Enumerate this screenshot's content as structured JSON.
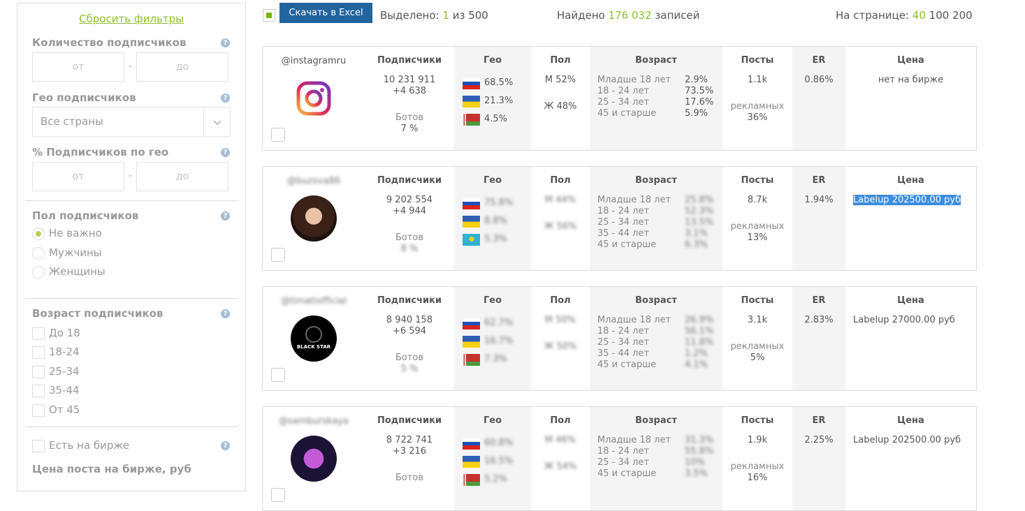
{
  "sidebar": {
    "reset": "Сбросить фильтры",
    "followers_title": "Количество подписчиков",
    "from_placeholder": "от",
    "to_placeholder": "до",
    "geo_title": "Гео подписчиков",
    "geo_select": "Все страны",
    "geo_pct_title": "% Подписчиков по гео",
    "gender_title": "Пол подписчиков",
    "gender_options": [
      "Не важно",
      "Мужчины",
      "Женщины"
    ],
    "age_title": "Возраст подписчиков",
    "age_options": [
      "До 18",
      "18-24",
      "25-34",
      "35-44",
      "От 45"
    ],
    "exchange_label": "Есть на бирже",
    "price_title": "Цена поста на бирже, руб",
    "help_symbol": "?"
  },
  "topbar": {
    "excel_button": "Скачать в Excel",
    "selected_label": "Выделено:",
    "selected_count": "1",
    "selected_of": "из 500",
    "found_label": "Найдено",
    "found_count": "176 032",
    "found_suffix": "записей",
    "per_page_label": "На странице:",
    "per_page_options": [
      "40",
      "100",
      "200"
    ]
  },
  "headers": {
    "subscribers": "Подписчики",
    "geo": "Гео",
    "gender": "Пол",
    "age": "Возраст",
    "posts": "Посты",
    "er": "ER",
    "price": "Цена",
    "bots": "Ботов",
    "ads": "рекламных"
  },
  "cards": [
    {
      "handle": "@instagramru",
      "followers": "10 231 911",
      "growth": "+4 638",
      "bots": "7 %",
      "geo": [
        "68.5%",
        "21.3%",
        "4.5%"
      ],
      "flags": [
        "ru",
        "ua",
        "by"
      ],
      "gender": [
        "М 52%",
        "Ж 48%"
      ],
      "age_labels": [
        "Младше 18 лет",
        "18 - 24 лет",
        "25 - 34 лет",
        "45 и старше"
      ],
      "age_values": [
        "2.9%",
        "73.5%",
        "17.6%",
        "5.9%"
      ],
      "posts": "1.1k",
      "ads": "36%",
      "er": "0.86%",
      "price": "нет на бирже"
    },
    {
      "handle": "@buzova86",
      "followers": "9 202 554",
      "growth": "+4 944",
      "bots": "8 %",
      "geo": [
        "75.8%",
        "8.8%",
        "5.3%"
      ],
      "flags": [
        "ru",
        "ua",
        "kz"
      ],
      "gender": [
        "М 44%",
        "Ж 56%"
      ],
      "age_labels": [
        "Младше 18 лет",
        "18 - 24 лет",
        "25 - 34 лет",
        "35 - 44 лет",
        "45 и старше"
      ],
      "age_values": [
        "25.8%",
        "52.3%",
        "13.5%",
        "3.1%",
        "6.3%"
      ],
      "posts": "8.7k",
      "ads": "13%",
      "er": "1.94%",
      "price": "Labelup 202500.00 руб"
    },
    {
      "handle": "@timatiofficial",
      "followers": "8 940 158",
      "growth": "+6 594",
      "bots": "5 %",
      "geo": [
        "62.7%",
        "16.7%",
        "7.3%"
      ],
      "flags": [
        "ru",
        "ua",
        "by"
      ],
      "gender": [
        "М 50%",
        "Ж 50%"
      ],
      "age_labels": [
        "Младше 18 лет",
        "18 - 24 лет",
        "25 - 34 лет",
        "35 - 44 лет",
        "45 и старше"
      ],
      "age_values": [
        "26.9%",
        "56.1%",
        "11.8%",
        "1.2%",
        "4.1%"
      ],
      "posts": "3.1k",
      "ads": "5%",
      "er": "2.83%",
      "price": "Labelup 27000.00 руб"
    },
    {
      "handle": "@samburskaya",
      "followers": "8 722 741",
      "growth": "+3 216",
      "bots": "",
      "geo": [
        "60.8%",
        "16.5%",
        "5.2%"
      ],
      "flags": [
        "ru",
        "ua",
        "by"
      ],
      "gender": [
        "М 46%",
        "Ж 54%"
      ],
      "age_labels": [
        "Младше 18 лет",
        "18 - 24 лет",
        "25 - 34 лет",
        "45 и старше"
      ],
      "age_values": [
        "31.3%",
        "55.8%",
        "10%",
        "3.5%"
      ],
      "posts": "1.9k",
      "ads": "16%",
      "er": "2.25%",
      "price": "Labelup 202500.00 руб"
    }
  ],
  "avatar_labels": {
    "blackstar": "BLACK STAR"
  }
}
